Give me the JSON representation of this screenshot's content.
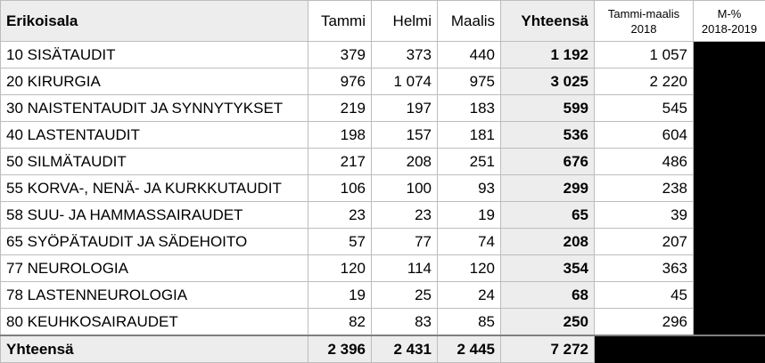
{
  "columns": {
    "specialty": "Erikoisala",
    "jan": "Tammi",
    "feb": "Helmi",
    "mar": "Maalis",
    "total": "Yhteensä",
    "prev_line1": "Tammi-maalis",
    "prev_line2": "2018",
    "change_line1": "M-%",
    "change_line2": "2018-2019"
  },
  "rows": [
    {
      "name": "10 SISÄTAUDIT",
      "jan": "379",
      "feb": "373",
      "mar": "440",
      "total": "1 192",
      "prev": "1 057"
    },
    {
      "name": "20 KIRURGIA",
      "jan": "976",
      "feb": "1 074",
      "mar": "975",
      "total": "3 025",
      "prev": "2 220"
    },
    {
      "name": "30 NAISTENTAUDIT JA SYNNYTYKSET",
      "jan": "219",
      "feb": "197",
      "mar": "183",
      "total": "599",
      "prev": "545"
    },
    {
      "name": "40 LASTENTAUDIT",
      "jan": "198",
      "feb": "157",
      "mar": "181",
      "total": "536",
      "prev": "604"
    },
    {
      "name": "50 SILMÄTAUDIT",
      "jan": "217",
      "feb": "208",
      "mar": "251",
      "total": "676",
      "prev": "486"
    },
    {
      "name": "55 KORVA-, NENÄ- JA KURKKUTAUDIT",
      "jan": "106",
      "feb": "100",
      "mar": "93",
      "total": "299",
      "prev": "238"
    },
    {
      "name": "58 SUU- JA HAMMASSAIRAUDET",
      "jan": "23",
      "feb": "23",
      "mar": "19",
      "total": "65",
      "prev": "39"
    },
    {
      "name": "65 SYÖPÄTAUDIT JA SÄDEHOITO",
      "jan": "57",
      "feb": "77",
      "mar": "74",
      "total": "208",
      "prev": "207"
    },
    {
      "name": "77 NEUROLOGIA",
      "jan": "120",
      "feb": "114",
      "mar": "120",
      "total": "354",
      "prev": "363"
    },
    {
      "name": "78 LASTENNEUROLOGIA",
      "jan": "19",
      "feb": "25",
      "mar": "24",
      "total": "68",
      "prev": "45"
    },
    {
      "name": "80 KEUHKOSAIRAUDET",
      "jan": "82",
      "feb": "83",
      "mar": "85",
      "total": "250",
      "prev": "296"
    }
  ],
  "totals": {
    "name": "Yhteensä",
    "jan": "2 396",
    "feb": "2 431",
    "mar": "2 445",
    "total": "7 272"
  }
}
